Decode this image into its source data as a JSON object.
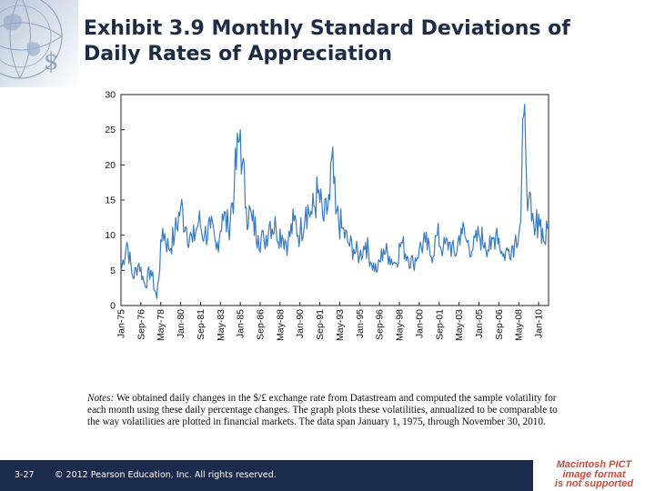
{
  "title": {
    "line1": "Exhibit 3.9  Monthly Standard Deviations of",
    "line2": "Daily Rates of Appreciation"
  },
  "notes": {
    "label": "Notes:",
    "text": " We obtained daily changes in the $/£ exchange rate from Datastream and computed the sample volatility for each month using these daily percentage changes. The graph plots these volatilities, annualized to be comparable to the way volatilities are plotted in financial markets. The data span January 1, 1975, through November 30, 2010."
  },
  "footer": {
    "page_number": "3-27",
    "copyright": "© 2012 Pearson Education, Inc. All rights reserved."
  },
  "pict_notice": {
    "line1": "Macintosh PICT",
    "line2": "image format",
    "line3": "is not supported"
  },
  "colors": {
    "line": "#3a7cc2",
    "footer_bg": "#1b2b4d",
    "title": "#1d2b44",
    "pict_text": "#d04a3a"
  },
  "chart_data": {
    "type": "line",
    "title": "",
    "xlabel": "",
    "ylabel": "",
    "ylim": [
      0,
      30
    ],
    "yticks": [
      0,
      5,
      10,
      15,
      20,
      25,
      30
    ],
    "xlim": [
      "Jan-75",
      "Nov-10"
    ],
    "xtick_labels": [
      "Jan-75",
      "Sep-76",
      "May-78",
      "Jan-80",
      "Sep-81",
      "May-83",
      "Jan-85",
      "Sep-86",
      "May-88",
      "Jan-90",
      "Sep-91",
      "May-93",
      "Jan-95",
      "Sep-96",
      "May-98",
      "Jan-00",
      "Sep-01",
      "May-03",
      "Jan-05",
      "Sep-06",
      "May-08",
      "Jan-10"
    ],
    "grid": false,
    "series": [
      {
        "x": [
          "Jan-75",
          "Jul-75",
          "Jan-76",
          "Jul-76",
          "Jan-77",
          "Jul-77",
          "Jan-78",
          "Jul-78",
          "Jan-79",
          "Jul-79",
          "Jan-80",
          "Jul-80",
          "Jan-81",
          "Jul-81",
          "Jan-82",
          "Jul-82",
          "Jan-83",
          "Jul-83",
          "Jan-84",
          "Jul-84",
          "Jan-85",
          "Mar-85",
          "Jul-85",
          "Jan-86",
          "Jul-86",
          "Jan-87",
          "Jul-87",
          "Jan-88",
          "Jul-88",
          "Jan-89",
          "Jul-89",
          "Jan-90",
          "Jul-90",
          "Jan-91",
          "Jul-91",
          "Jan-92",
          "Jul-92",
          "Sep-92",
          "Jan-93",
          "Jul-93",
          "Jan-94",
          "Jul-94",
          "Jan-95",
          "Jul-95",
          "Jan-96",
          "Jul-96",
          "Jan-97",
          "Jul-97",
          "Jan-98",
          "Jul-98",
          "Jan-99",
          "Jul-99",
          "Jan-00",
          "Jul-00",
          "Jan-01",
          "Jul-01",
          "Jan-02",
          "Jul-02",
          "Jan-03",
          "Jul-03",
          "Jan-04",
          "Jul-04",
          "Jan-05",
          "Jul-05",
          "Jan-06",
          "Jul-06",
          "Jan-07",
          "Jul-07",
          "Jan-08",
          "Jul-08",
          "Oct-08",
          "Dec-08",
          "Mar-09",
          "Jun-09",
          "Sep-09",
          "Jan-10",
          "Jul-10",
          "Nov-10"
        ],
        "values": [
          5,
          9,
          4,
          6,
          3,
          5,
          1,
          11,
          8,
          10,
          14,
          11,
          9,
          12,
          10,
          11,
          8,
          13,
          11,
          17,
          25,
          20,
          14,
          12,
          10,
          9,
          12,
          11,
          10,
          9,
          12,
          10,
          14,
          13,
          16,
          12,
          15,
          21,
          13,
          11,
          9,
          8,
          7,
          9,
          6,
          5,
          8,
          7,
          6,
          9,
          7,
          6,
          8,
          9,
          7,
          10,
          8,
          9,
          7,
          11,
          9,
          8,
          10,
          9,
          8,
          11,
          7,
          8,
          9,
          12,
          27,
          22,
          15,
          12,
          10,
          13,
          9,
          11
        ]
      }
    ]
  }
}
